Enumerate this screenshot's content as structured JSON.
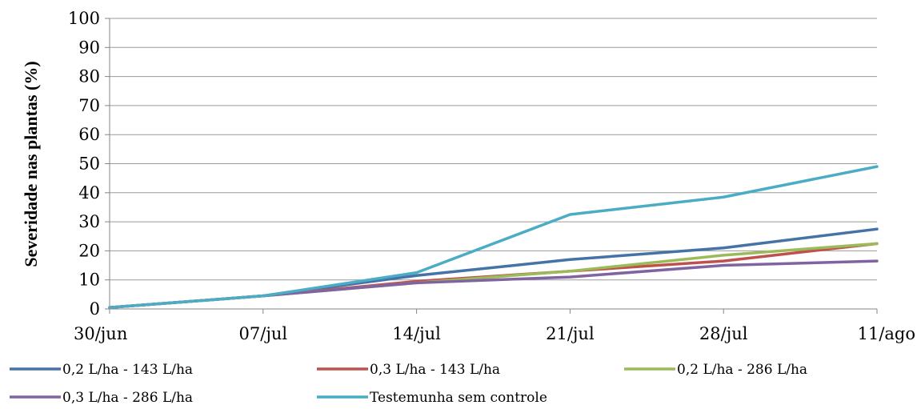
{
  "chart_data": {
    "type": "line",
    "title": "",
    "xlabel": "",
    "ylabel": "Severidade nas plantas (%)",
    "categories": [
      "30/jun",
      "07/jul",
      "14/jul",
      "21/jul",
      "28/jul",
      "11/ago"
    ],
    "y_ticks": [
      "0",
      "10",
      "20",
      "30",
      "40",
      "50",
      "60",
      "70",
      "80",
      "90",
      "100"
    ],
    "ylim": [
      0,
      100
    ],
    "grid": true,
    "legend_position": "bottom",
    "series": [
      {
        "name": "0,2 L/ha - 143 L/ha",
        "color": "#4572A7",
        "values": [
          0.5,
          4.5,
          11.5,
          17,
          21,
          27.5
        ]
      },
      {
        "name": "0,3 L/ha - 143 L/ha",
        "color": "#C0504D",
        "values": [
          0.5,
          4.5,
          9.5,
          13,
          16.5,
          22.5
        ]
      },
      {
        "name": "0,2 L/ha - 286 L/ha",
        "color": "#9BBB59",
        "values": [
          0.5,
          4.5,
          9,
          13,
          18.5,
          22.5
        ]
      },
      {
        "name": "0,3 L/ha - 286 L/ha",
        "color": "#8064A2",
        "values": [
          0.5,
          4.5,
          9,
          11,
          15,
          16.5
        ]
      },
      {
        "name": "Testemunha sem controle",
        "color": "#4BACC6",
        "values": [
          0.5,
          4.5,
          12.5,
          32.5,
          38.5,
          49
        ]
      }
    ]
  }
}
